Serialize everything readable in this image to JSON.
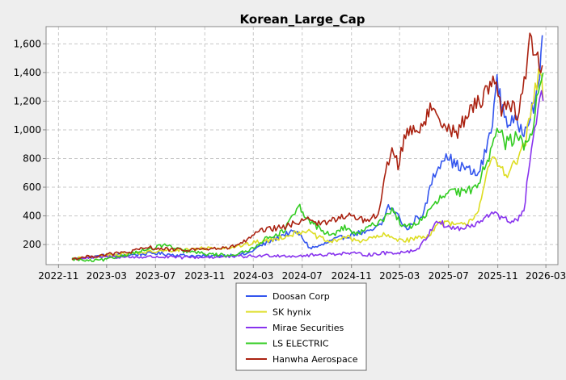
{
  "chart_data": {
    "type": "line",
    "title": "Korean_Large_Cap",
    "xlabel": "",
    "ylabel": "",
    "x_range": [
      "2022-10-01",
      "2026-03-31"
    ],
    "ylim": [
      60,
      1720
    ],
    "x_ticks": [
      "2022-11",
      "2023-03",
      "2023-07",
      "2023-11",
      "2024-03",
      "2024-07",
      "2024-11",
      "2025-03",
      "2025-07",
      "2025-11",
      "2026-03"
    ],
    "y_ticks": [
      200,
      400,
      600,
      800,
      1000,
      1200,
      1400,
      1600
    ],
    "y_tick_labels": [
      "200",
      "400",
      "600",
      "800",
      "1,000",
      "1,200",
      "1,400",
      "1,600"
    ],
    "grid": true,
    "legend_position": "bottom",
    "background": "#ffffff",
    "series": [
      {
        "name": "Doosan Corp",
        "color": "#3355ee",
        "points": [
          [
            "2022-12-05",
            100
          ],
          [
            "2023-01-15",
            112
          ],
          [
            "2023-03-01",
            125
          ],
          [
            "2023-05-01",
            128
          ],
          [
            "2023-07-01",
            140
          ],
          [
            "2023-09-01",
            125
          ],
          [
            "2023-11-01",
            118
          ],
          [
            "2024-01-01",
            125
          ],
          [
            "2024-02-15",
            135
          ],
          [
            "2024-03-15",
            185
          ],
          [
            "2024-04-15",
            225
          ],
          [
            "2024-05-15",
            270
          ],
          [
            "2024-06-15",
            290
          ],
          [
            "2024-07-01",
            250
          ],
          [
            "2024-07-20",
            175
          ],
          [
            "2024-08-15",
            190
          ],
          [
            "2024-09-15",
            230
          ],
          [
            "2024-10-15",
            255
          ],
          [
            "2024-11-15",
            280
          ],
          [
            "2024-12-15",
            285
          ],
          [
            "2025-01-15",
            340
          ],
          [
            "2025-02-01",
            470
          ],
          [
            "2025-02-20",
            420
          ],
          [
            "2025-03-20",
            300
          ],
          [
            "2025-04-10",
            380
          ],
          [
            "2025-05-01",
            420
          ],
          [
            "2025-05-20",
            640
          ],
          [
            "2025-06-10",
            770
          ],
          [
            "2025-06-25",
            840
          ],
          [
            "2025-07-15",
            760
          ],
          [
            "2025-08-15",
            730
          ],
          [
            "2025-09-10",
            680
          ],
          [
            "2025-09-25",
            780
          ],
          [
            "2025-10-15",
            1000
          ],
          [
            "2025-10-30",
            1330
          ],
          [
            "2025-11-10",
            1180
          ],
          [
            "2025-11-25",
            1050
          ],
          [
            "2025-12-10",
            1060
          ],
          [
            "2026-01-05",
            1000
          ],
          [
            "2026-01-25",
            1150
          ],
          [
            "2026-02-10",
            1250
          ],
          [
            "2026-02-20",
            1660
          ]
        ]
      },
      {
        "name": "SK hynix",
        "color": "#dddd22",
        "points": [
          [
            "2022-12-05",
            100
          ],
          [
            "2023-01-15",
            110
          ],
          [
            "2023-03-01",
            125
          ],
          [
            "2023-05-01",
            140
          ],
          [
            "2023-07-01",
            150
          ],
          [
            "2023-09-01",
            165
          ],
          [
            "2023-11-01",
            175
          ],
          [
            "2024-01-01",
            180
          ],
          [
            "2024-02-15",
            200
          ],
          [
            "2024-03-15",
            220
          ],
          [
            "2024-04-15",
            230
          ],
          [
            "2024-05-15",
            255
          ],
          [
            "2024-06-15",
            280
          ],
          [
            "2024-07-10",
            300
          ],
          [
            "2024-08-10",
            250
          ],
          [
            "2024-09-10",
            215
          ],
          [
            "2024-10-15",
            255
          ],
          [
            "2024-11-15",
            225
          ],
          [
            "2024-12-15",
            240
          ],
          [
            "2025-01-20",
            265
          ],
          [
            "2025-02-20",
            240
          ],
          [
            "2025-03-20",
            230
          ],
          [
            "2025-04-10",
            245
          ],
          [
            "2025-05-10",
            260
          ],
          [
            "2025-06-10",
            355
          ],
          [
            "2025-07-10",
            340
          ],
          [
            "2025-08-10",
            335
          ],
          [
            "2025-09-10",
            420
          ],
          [
            "2025-09-25",
            560
          ],
          [
            "2025-10-15",
            800
          ],
          [
            "2025-11-05",
            750
          ],
          [
            "2025-11-25",
            700
          ],
          [
            "2025-12-15",
            760
          ],
          [
            "2026-01-10",
            930
          ],
          [
            "2026-01-25",
            1150
          ],
          [
            "2026-02-15",
            1440
          ],
          [
            "2026-02-22",
            1200
          ]
        ]
      },
      {
        "name": "Mirae Securities",
        "color": "#8833ee",
        "points": [
          [
            "2022-12-05",
            100
          ],
          [
            "2023-01-15",
            108
          ],
          [
            "2023-03-01",
            115
          ],
          [
            "2023-05-01",
            112
          ],
          [
            "2023-07-01",
            115
          ],
          [
            "2023-09-01",
            110
          ],
          [
            "2023-11-01",
            112
          ],
          [
            "2024-01-01",
            115
          ],
          [
            "2024-03-01",
            118
          ],
          [
            "2024-04-15",
            125
          ],
          [
            "2024-06-15",
            120
          ],
          [
            "2024-08-15",
            128
          ],
          [
            "2024-10-15",
            140
          ],
          [
            "2024-12-15",
            130
          ],
          [
            "2025-01-20",
            140
          ],
          [
            "2025-03-01",
            145
          ],
          [
            "2025-04-10",
            160
          ],
          [
            "2025-05-01",
            220
          ],
          [
            "2025-06-01",
            370
          ],
          [
            "2025-07-01",
            320
          ],
          [
            "2025-08-01",
            310
          ],
          [
            "2025-09-01",
            330
          ],
          [
            "2025-10-01",
            380
          ],
          [
            "2025-10-25",
            440
          ],
          [
            "2025-11-10",
            380
          ],
          [
            "2025-12-10",
            360
          ],
          [
            "2026-01-05",
            420
          ],
          [
            "2026-01-20",
            800
          ],
          [
            "2026-02-05",
            1050
          ],
          [
            "2026-02-18",
            1230
          ],
          [
            "2026-02-22",
            1200
          ]
        ]
      },
      {
        "name": "LS ELECTRIC",
        "color": "#33cc22",
        "points": [
          [
            "2022-12-05",
            100
          ],
          [
            "2023-01-15",
            85
          ],
          [
            "2023-03-01",
            95
          ],
          [
            "2023-05-01",
            140
          ],
          [
            "2023-07-01",
            175
          ],
          [
            "2023-07-20",
            200
          ],
          [
            "2023-09-01",
            160
          ],
          [
            "2023-11-01",
            135
          ],
          [
            "2024-01-01",
            125
          ],
          [
            "2024-02-15",
            150
          ],
          [
            "2024-03-15",
            210
          ],
          [
            "2024-04-15",
            260
          ],
          [
            "2024-05-15",
            290
          ],
          [
            "2024-06-01",
            370
          ],
          [
            "2024-06-25",
            460
          ],
          [
            "2024-07-10",
            380
          ],
          [
            "2024-08-10",
            320
          ],
          [
            "2024-09-10",
            260
          ],
          [
            "2024-10-15",
            320
          ],
          [
            "2024-11-15",
            270
          ],
          [
            "2024-12-15",
            320
          ],
          [
            "2025-01-20",
            380
          ],
          [
            "2025-02-10",
            450
          ],
          [
            "2025-03-10",
            320
          ],
          [
            "2025-04-10",
            340
          ],
          [
            "2025-05-10",
            420
          ],
          [
            "2025-06-10",
            520
          ],
          [
            "2025-07-10",
            570
          ],
          [
            "2025-08-10",
            560
          ],
          [
            "2025-09-10",
            610
          ],
          [
            "2025-10-10",
            820
          ],
          [
            "2025-10-30",
            1050
          ],
          [
            "2025-11-20",
            900
          ],
          [
            "2025-12-15",
            950
          ],
          [
            "2026-01-05",
            900
          ],
          [
            "2026-01-25",
            1000
          ],
          [
            "2026-02-10",
            1250
          ],
          [
            "2026-02-22",
            1400
          ]
        ]
      },
      {
        "name": "Hanwha Aerospace",
        "color": "#aa2211",
        "points": [
          [
            "2022-12-05",
            100
          ],
          [
            "2023-01-15",
            115
          ],
          [
            "2023-03-01",
            130
          ],
          [
            "2023-05-01",
            150
          ],
          [
            "2023-06-15",
            180
          ],
          [
            "2023-07-15",
            170
          ],
          [
            "2023-09-01",
            160
          ],
          [
            "2023-11-01",
            170
          ],
          [
            "2024-01-01",
            175
          ],
          [
            "2024-02-15",
            230
          ],
          [
            "2024-03-15",
            290
          ],
          [
            "2024-04-15",
            310
          ],
          [
            "2024-05-15",
            320
          ],
          [
            "2024-06-15",
            350
          ],
          [
            "2024-07-15",
            390
          ],
          [
            "2024-08-15",
            340
          ],
          [
            "2024-09-15",
            370
          ],
          [
            "2024-10-15",
            400
          ],
          [
            "2024-11-15",
            390
          ],
          [
            "2024-12-15",
            360
          ],
          [
            "2025-01-10",
            430
          ],
          [
            "2025-01-25",
            700
          ],
          [
            "2025-02-10",
            880
          ],
          [
            "2025-02-25",
            760
          ],
          [
            "2025-03-20",
            1000
          ],
          [
            "2025-04-20",
            1010
          ],
          [
            "2025-05-20",
            1150
          ],
          [
            "2025-06-20",
            1050
          ],
          [
            "2025-07-20",
            970
          ],
          [
            "2025-08-20",
            1120
          ],
          [
            "2025-09-20",
            1210
          ],
          [
            "2025-10-20",
            1370
          ],
          [
            "2025-11-10",
            1150
          ],
          [
            "2025-11-30",
            1200
          ],
          [
            "2025-12-20",
            1100
          ],
          [
            "2026-01-10",
            1400
          ],
          [
            "2026-01-20",
            1620
          ],
          [
            "2026-02-05",
            1500
          ],
          [
            "2026-02-20",
            1450
          ]
        ]
      }
    ]
  }
}
